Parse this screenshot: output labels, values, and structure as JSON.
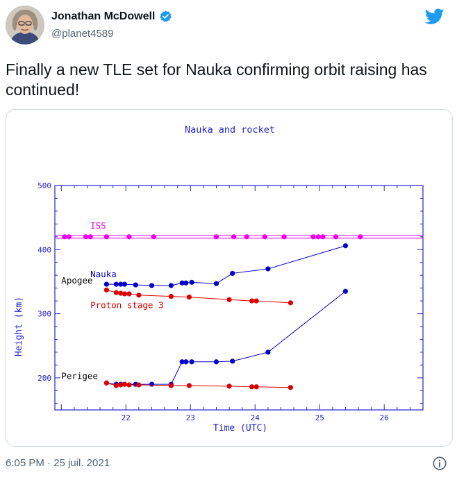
{
  "tweet": {
    "author_name": "Jonathan McDowell",
    "handle": "@planet4589",
    "text": "Finally a new TLE set for Nauka confirming orbit raising has continued!",
    "timestamp": "6:05 PM · 25 juil. 2021"
  },
  "icons": {
    "verified": "verified-badge-icon",
    "twitter": "twitter-bird-icon",
    "info": "info-icon"
  },
  "colors": {
    "nauka": "#0000cc",
    "proton": "#dd0000",
    "iss": "#ee00ee",
    "axis": "#2222cc",
    "verified": "#1d9bf0"
  },
  "chart_data": {
    "type": "line",
    "title": "Nauka and rocket",
    "xlabel": "Time (UTC)",
    "ylabel": "Height (km)",
    "xlim": [
      20.9,
      26.6
    ],
    "ylim": [
      150,
      500
    ],
    "xticks": [
      22,
      23,
      24,
      25,
      26
    ],
    "yticks": [
      200,
      300,
      400,
      500
    ],
    "annotations": [
      {
        "text": "ISS",
        "x": 21.45,
        "y": 433,
        "color": "#ee00ee"
      },
      {
        "text": "Nauka",
        "x": 21.45,
        "y": 357,
        "color": "#0000cc"
      },
      {
        "text": "Apogee",
        "x": 21.0,
        "y": 347,
        "color": "#000000"
      },
      {
        "text": "Proton stage 3",
        "x": 21.45,
        "y": 309,
        "color": "#dd0000"
      },
      {
        "text": "Perigee",
        "x": 21.0,
        "y": 198,
        "color": "#000000"
      }
    ],
    "series": [
      {
        "name": "ISS",
        "color": "#ee00ee",
        "x": [
          21.05,
          21.12,
          21.38,
          21.45,
          21.7,
          22.05,
          22.43,
          23.4,
          23.67,
          23.87,
          24.15,
          24.45,
          24.9,
          24.98,
          25.05,
          25.25,
          25.63
        ],
        "y": [
          420,
          420,
          420,
          420,
          420,
          420,
          420,
          420,
          420,
          420,
          420,
          420,
          420,
          420,
          420,
          420,
          420
        ]
      },
      {
        "name": "Nauka apogee",
        "color": "#0000cc",
        "x": [
          21.7,
          21.85,
          21.92,
          21.98,
          22.15,
          22.4,
          22.7,
          22.87,
          22.93,
          23.02,
          23.4,
          23.65,
          24.2,
          25.4
        ],
        "y": [
          346,
          346,
          346,
          346,
          345,
          344,
          344,
          348,
          348,
          349,
          347,
          363,
          370,
          406
        ]
      },
      {
        "name": "Nauka perigee",
        "color": "#0000cc",
        "x": [
          21.7,
          21.85,
          21.92,
          21.98,
          22.15,
          22.4,
          22.7,
          22.87,
          22.93,
          23.02,
          23.4,
          23.65,
          24.2,
          25.4
        ],
        "y": [
          192,
          190,
          190,
          190,
          190,
          190,
          190,
          225,
          225,
          225,
          225,
          226,
          240,
          335
        ]
      },
      {
        "name": "Proton apogee",
        "color": "#dd0000",
        "x": [
          21.7,
          21.85,
          21.92,
          21.98,
          22.05,
          22.2,
          22.7,
          22.98,
          23.6,
          23.95,
          24.02,
          24.55
        ],
        "y": [
          337,
          333,
          332,
          331,
          331,
          329,
          327,
          326,
          322,
          320,
          320,
          317
        ]
      },
      {
        "name": "Proton perigee",
        "color": "#dd0000",
        "x": [
          21.7,
          21.85,
          21.92,
          21.98,
          22.05,
          22.2,
          22.7,
          22.98,
          23.6,
          23.95,
          24.02,
          24.55
        ],
        "y": [
          192,
          188,
          189,
          190,
          189,
          189,
          188,
          188,
          187,
          186,
          186,
          185
        ]
      }
    ]
  }
}
